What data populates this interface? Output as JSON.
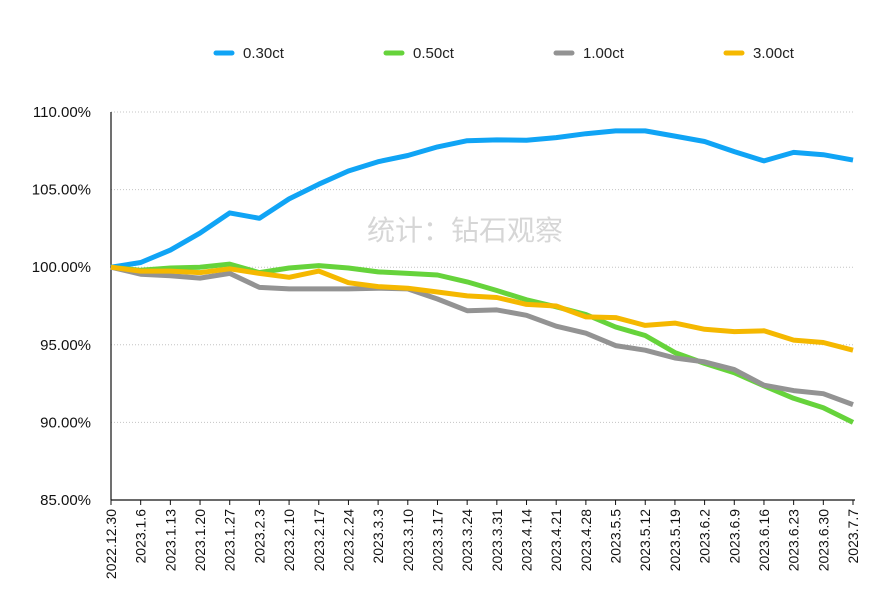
{
  "chart_data": {
    "type": "line",
    "title": "",
    "xlabel": "",
    "ylabel": "",
    "ylim": [
      85,
      110
    ],
    "yticks": [
      85,
      90,
      95,
      100,
      105,
      110
    ],
    "ytick_labels": [
      "85.00%",
      "90.00%",
      "95.00%",
      "100.00%",
      "105.00%",
      "110.00%"
    ],
    "grid": "horizontal dotted",
    "legend_position": "top",
    "watermark": "统计：钻石观察",
    "x": [
      "2022.12.30",
      "2023.1.6",
      "2023.1.13",
      "2023.1.20",
      "2023.1.27",
      "2023.2.3",
      "2023.2.10",
      "2023.2.17",
      "2023.2.24",
      "2023.3.3",
      "2023.3.10",
      "2023.3.17",
      "2023.3.24",
      "2023.3.31",
      "2023.4.14",
      "2023.4.21",
      "2023.4.28",
      "2023.5.5",
      "2023.5.12",
      "2023.5.19",
      "2023.6.2",
      "2023.6.9",
      "2023.6.16",
      "2023.6.23",
      "2023.6.30",
      "2023.7.7"
    ],
    "series": [
      {
        "name": "0.30ct",
        "color": "#10a4f5",
        "values": [
          100.0,
          100.3,
          101.1,
          102.2,
          103.5,
          103.15,
          104.4,
          105.35,
          106.2,
          106.8,
          107.2,
          107.75,
          108.15,
          108.2,
          108.18,
          108.35,
          108.6,
          108.78,
          108.78,
          108.45,
          108.1,
          107.45,
          106.85,
          107.4,
          107.25,
          106.9
        ]
      },
      {
        "name": "0.50ct",
        "color": "#66d33b",
        "values": [
          100.0,
          99.8,
          99.95,
          100.0,
          100.2,
          99.65,
          99.95,
          100.1,
          99.95,
          99.7,
          99.6,
          99.5,
          99.05,
          98.5,
          97.9,
          97.45,
          96.95,
          96.15,
          95.6,
          94.5,
          93.8,
          93.2,
          92.35,
          91.55,
          90.95,
          90.0
        ]
      },
      {
        "name": "1.00ct",
        "color": "#939393",
        "values": [
          100.0,
          99.55,
          99.45,
          99.3,
          99.6,
          98.7,
          98.6,
          98.6,
          98.6,
          98.65,
          98.6,
          97.95,
          97.2,
          97.25,
          96.9,
          96.2,
          95.75,
          94.95,
          94.65,
          94.15,
          93.9,
          93.4,
          92.4,
          92.05,
          91.85,
          91.15
        ]
      },
      {
        "name": "3.00ct",
        "color": "#f5b800",
        "values": [
          100.0,
          99.75,
          99.75,
          99.65,
          99.9,
          99.6,
          99.35,
          99.75,
          99.0,
          98.75,
          98.65,
          98.4,
          98.15,
          98.05,
          97.6,
          97.5,
          96.8,
          96.75,
          96.25,
          96.4,
          96.0,
          95.85,
          95.9,
          95.3,
          95.15,
          94.65
        ]
      }
    ]
  }
}
